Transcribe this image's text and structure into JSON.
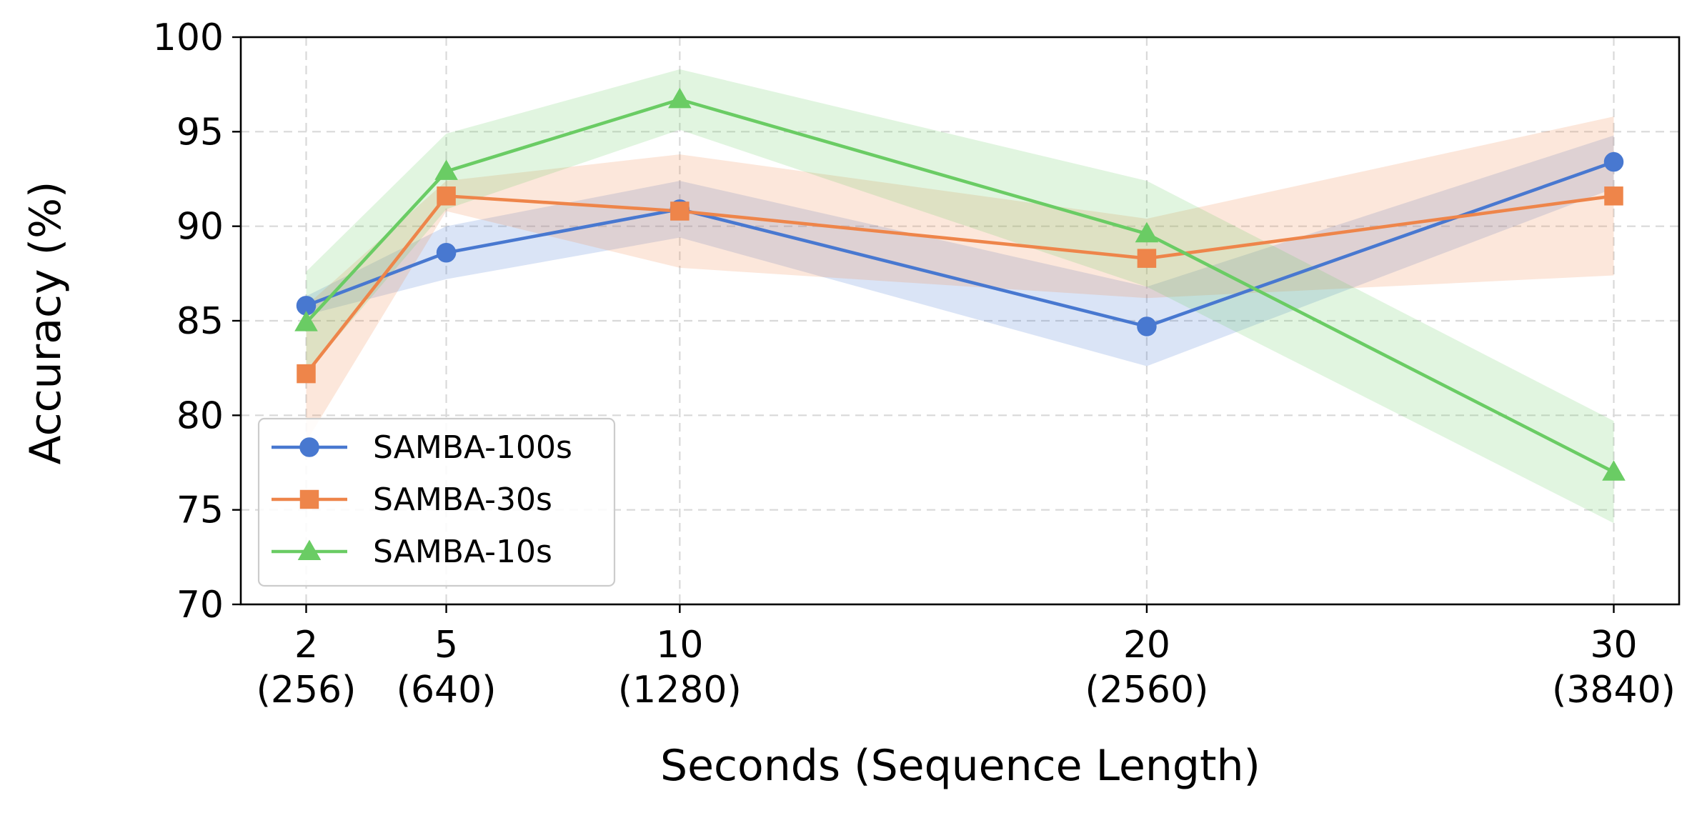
{
  "chart_data": {
    "type": "line",
    "xlabel": "Seconds (Sequence Length)",
    "ylabel": "Accuracy (%)",
    "x": [
      2,
      5,
      10,
      20,
      30
    ],
    "x_tick_labels": [
      {
        "value": "2",
        "sub": "(256)"
      },
      {
        "value": "5",
        "sub": "(640)"
      },
      {
        "value": "10",
        "sub": "(1280)"
      },
      {
        "value": "20",
        "sub": "(2560)"
      },
      {
        "value": "30",
        "sub": "(3840)"
      }
    ],
    "xlim": [
      0.6,
      31.4
    ],
    "ylim": [
      70,
      100
    ],
    "y_ticks": [
      70,
      75,
      80,
      85,
      90,
      95,
      100
    ],
    "grid": true,
    "legend_position": "lower-left",
    "series": [
      {
        "name": "SAMBA-100s",
        "color": "#4878d0",
        "marker": "circle",
        "values": [
          85.8,
          88.6,
          90.9,
          84.7,
          93.4
        ],
        "lower": [
          85.3,
          87.2,
          89.4,
          82.6,
          92.0
        ],
        "upper": [
          86.3,
          90.0,
          92.4,
          86.8,
          94.8
        ]
      },
      {
        "name": "SAMBA-30s",
        "color": "#ee854a",
        "marker": "square",
        "values": [
          82.2,
          91.6,
          90.8,
          88.3,
          91.6
        ],
        "lower": [
          78.6,
          90.8,
          87.8,
          86.2,
          87.4
        ],
        "upper": [
          85.8,
          92.4,
          93.8,
          90.4,
          95.8
        ]
      },
      {
        "name": "SAMBA-10s",
        "color": "#6acc64",
        "marker": "triangle",
        "values": [
          84.9,
          92.9,
          96.7,
          89.6,
          77.0
        ],
        "lower": [
          82.2,
          90.9,
          95.1,
          86.8,
          74.3
        ],
        "upper": [
          87.6,
          94.9,
          98.3,
          92.4,
          79.7
        ]
      }
    ]
  }
}
